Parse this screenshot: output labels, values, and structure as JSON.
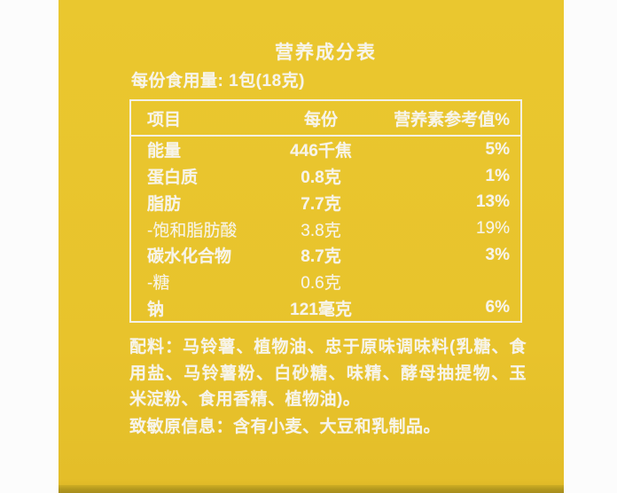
{
  "colors": {
    "panel_yellow": "#e8c32c",
    "panel_bottom_shadow": "#b2971f",
    "text_white": "#f7f4ea",
    "page_background": "#fcfcfc",
    "table_border_white": "#f4f1e6"
  },
  "label": {
    "title": "营养成分表",
    "serving_line": "每份食用量: 1包(18克)",
    "ingredients": "配料：马铃薯、植物油、忠于原味调味料(乳糖、食用盐、马铃薯粉、白砂糖、味精、酵母抽提物、玉米淀粉、食用香精、植物油)。",
    "allergen": "致敏原信息：含有小麦、大豆和乳制品。"
  },
  "table": {
    "headers": [
      "项目",
      "每份",
      "营养素参考值%"
    ],
    "rows": [
      {
        "item": "能量",
        "per_serving": "446千焦",
        "nrv": "5%"
      },
      {
        "item": "蛋白质",
        "per_serving": "0.8克",
        "nrv": "1%"
      },
      {
        "item": "脂肪",
        "per_serving": "7.7克",
        "nrv": "13%"
      },
      {
        "item": "-饱和脂肪酸",
        "per_serving": "3.8克",
        "nrv": "19%"
      },
      {
        "item": "碳水化合物",
        "per_serving": "8.7克",
        "nrv": "3%"
      },
      {
        "item": "-糖",
        "per_serving": "0.6克",
        "nrv": ""
      },
      {
        "item": "钠",
        "per_serving": "121毫克",
        "nrv": "6%"
      }
    ]
  }
}
